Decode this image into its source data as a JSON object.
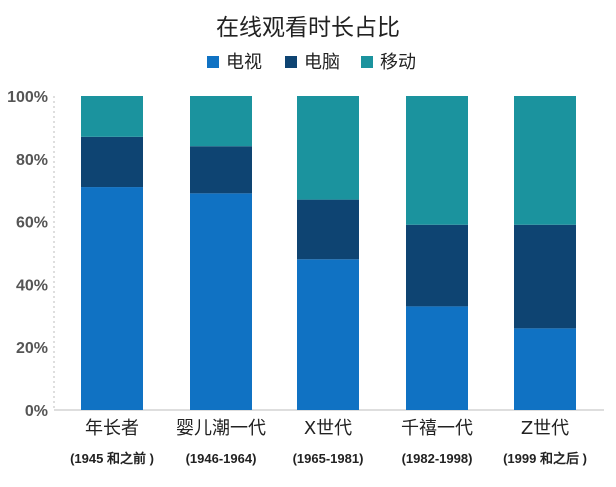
{
  "chart_data": {
    "type": "bar",
    "stacked": true,
    "title": "在线观看时长占比",
    "legend_position": "top",
    "categories": [
      "年长者",
      "婴儿潮一代",
      "X世代",
      "千禧一代",
      "Z世代"
    ],
    "category_sublabels": [
      "(1945 和之前 )",
      "(1946-1964)",
      "(1965-1981)",
      "(1982-1998)",
      "(1999  和之后  )"
    ],
    "series": [
      {
        "name": "电视",
        "color": "#1072c3",
        "values": [
          71,
          69,
          48,
          33,
          26
        ]
      },
      {
        "name": "电脑",
        "color": "#0e4472",
        "values": [
          16,
          15,
          19,
          26,
          33
        ]
      },
      {
        "name": "移动",
        "color": "#1b939e",
        "values": [
          13,
          16,
          33,
          41,
          41
        ]
      }
    ],
    "yticks": [
      "0%",
      "20%",
      "40%",
      "60%",
      "80%",
      "100%"
    ],
    "ylim": [
      0,
      100
    ],
    "grid": false
  }
}
